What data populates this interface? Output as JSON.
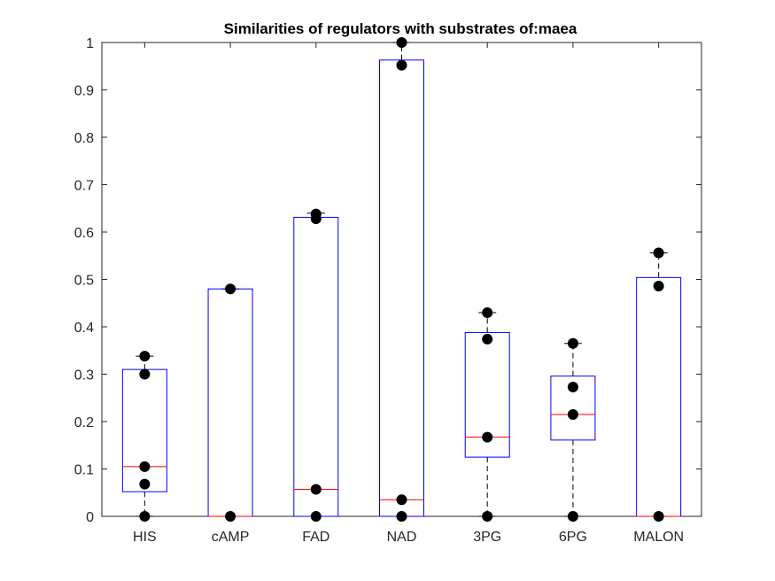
{
  "chart_data": {
    "type": "boxplot",
    "title": "Similarities of regulators with substrates of:maea",
    "xlabel": "",
    "ylabel": "",
    "ylim": [
      0,
      1
    ],
    "yticks": [
      "0",
      "0.1",
      "0.2",
      "0.3",
      "0.4",
      "0.5",
      "0.6",
      "0.7",
      "0.8",
      "0.9",
      "1"
    ],
    "categories": [
      "HIS",
      "cAMP",
      "FAD",
      "NAD",
      "3PG",
      "6PG",
      "MALON"
    ],
    "grid": false,
    "colors": {
      "box": "#0000ff",
      "median": "#ff0000",
      "whisker": "#000000",
      "point": "#000000",
      "axis": "#262626"
    },
    "boxes": [
      {
        "category": "HIS",
        "whisker_low": 0.0,
        "q1": 0.052,
        "median": 0.105,
        "q3": 0.31,
        "whisker_high": 0.338,
        "points": [
          0.0,
          0.068,
          0.105,
          0.3,
          0.338
        ]
      },
      {
        "category": "cAMP",
        "whisker_low": 0.0,
        "q1": 0.0,
        "median": 0.0,
        "q3": 0.48,
        "whisker_high": 0.48,
        "points": [
          0.0,
          0.48
        ]
      },
      {
        "category": "FAD",
        "whisker_low": 0.0,
        "q1": 0.0,
        "median": 0.057,
        "q3": 0.631,
        "whisker_high": 0.64,
        "points": [
          0.0,
          0.057,
          0.628,
          0.638
        ]
      },
      {
        "category": "NAD",
        "whisker_low": 0.0,
        "q1": 0.0,
        "median": 0.035,
        "q3": 0.963,
        "whisker_high": 1.0,
        "points": [
          0.0,
          0.035,
          0.952,
          1.0
        ]
      },
      {
        "category": "3PG",
        "whisker_low": 0.0,
        "q1": 0.125,
        "median": 0.167,
        "q3": 0.388,
        "whisker_high": 0.43,
        "points": [
          0.0,
          0.167,
          0.374,
          0.43
        ]
      },
      {
        "category": "6PG",
        "whisker_low": 0.0,
        "q1": 0.161,
        "median": 0.215,
        "q3": 0.296,
        "whisker_high": 0.365,
        "points": [
          0.0,
          0.215,
          0.273,
          0.365
        ]
      },
      {
        "category": "MALON",
        "whisker_low": 0.0,
        "q1": 0.0,
        "median": 0.0,
        "q3": 0.504,
        "whisker_high": 0.556,
        "points": [
          0.0,
          0.486,
          0.556
        ]
      }
    ]
  }
}
